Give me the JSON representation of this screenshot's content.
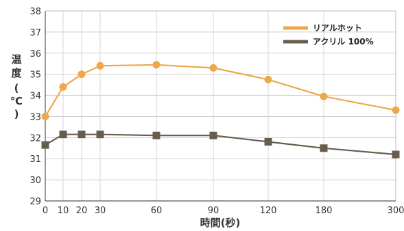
{
  "chart_data": {
    "type": "line",
    "title": "",
    "xlabel": "時間(秒)",
    "ylabel_chars": [
      "温",
      "度",
      "(",
      "℃",
      ")"
    ],
    "x": [
      "0",
      "10",
      "20",
      "30",
      "60",
      "90",
      "120",
      "180",
      "300"
    ],
    "ylim": [
      29,
      38
    ],
    "yticks": [
      "29",
      "30",
      "31",
      "32",
      "33",
      "34",
      "35",
      "36",
      "37",
      "38"
    ],
    "grid": true,
    "legend_position": "top-right",
    "series": [
      {
        "name": "リアルホット",
        "color": "#eea84a",
        "marker": "circle",
        "values": [
          33.0,
          34.4,
          35.0,
          35.4,
          35.45,
          35.3,
          34.75,
          33.95,
          33.3
        ]
      },
      {
        "name": "アクリル 100%",
        "color": "#675d4c",
        "marker": "square",
        "values": [
          31.65,
          32.15,
          32.15,
          32.15,
          32.1,
          32.1,
          31.8,
          31.5,
          31.2
        ]
      }
    ]
  }
}
